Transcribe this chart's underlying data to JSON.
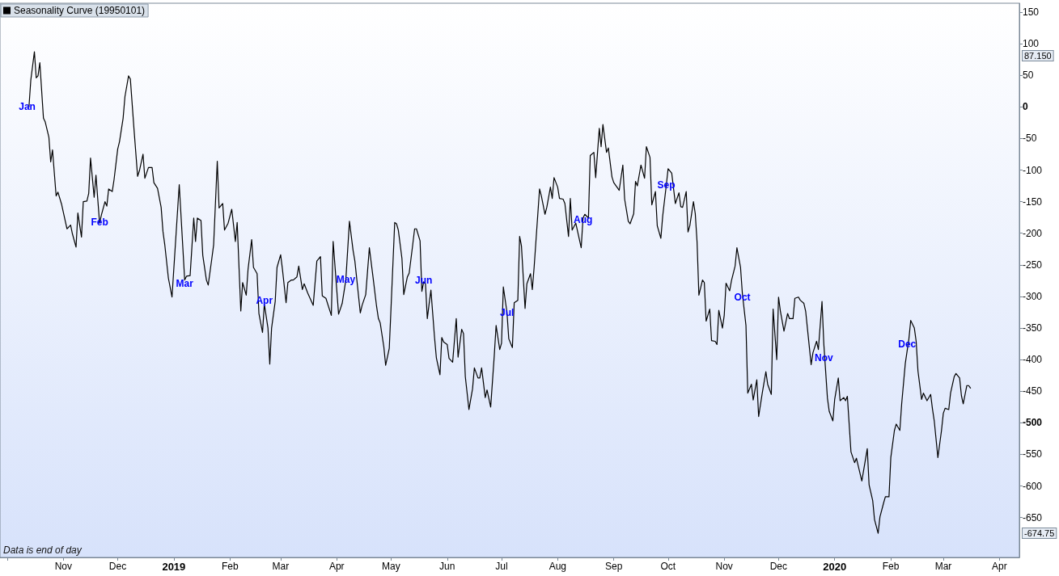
{
  "chart_data": {
    "type": "line",
    "x": [
      "2018-10-13",
      "2018-10-14",
      "2018-10-16",
      "2018-10-17",
      "2018-10-18",
      "2018-10-19",
      "2018-10-21",
      "2018-10-22",
      "2018-10-24",
      "2018-10-25",
      "2018-10-26",
      "2018-10-28",
      "2018-10-29",
      "2018-10-31",
      "2018-11-02",
      "2018-11-03",
      "2018-11-05",
      "2018-11-06",
      "2018-11-08",
      "2018-11-09",
      "2018-11-11",
      "2018-11-12",
      "2018-11-14",
      "2018-11-15",
      "2018-11-16",
      "2018-11-18",
      "2018-11-19",
      "2018-11-21",
      "2018-11-22",
      "2018-11-24",
      "2018-11-25",
      "2018-11-26",
      "2018-11-28",
      "2018-11-29",
      "2018-12-01",
      "2018-12-02",
      "2018-12-04",
      "2018-12-05",
      "2018-12-07",
      "2018-12-08",
      "2018-12-10",
      "2018-12-12",
      "2018-12-13",
      "2018-12-15",
      "2018-12-16",
      "2018-12-18",
      "2018-12-20",
      "2018-12-21",
      "2018-12-23",
      "2018-12-25",
      "2018-12-26",
      "2018-12-27",
      "2018-12-29",
      "2018-12-31",
      "2019-01-04",
      "2019-01-07",
      "2019-01-08",
      "2019-01-10",
      "2019-01-12",
      "2019-01-13",
      "2019-01-14",
      "2019-01-16",
      "2019-01-17",
      "2019-01-19",
      "2019-01-20",
      "2019-01-22",
      "2019-01-23",
      "2019-01-25",
      "2019-01-26",
      "2019-01-28",
      "2019-01-29",
      "2019-01-31",
      "2019-02-02",
      "2019-02-04",
      "2019-02-05",
      "2019-02-07",
      "2019-02-08",
      "2019-02-10",
      "2019-02-11",
      "2019-02-13",
      "2019-02-14",
      "2019-02-16",
      "2019-02-17",
      "2019-02-19",
      "2019-02-20",
      "2019-02-22",
      "2019-02-23",
      "2019-02-24",
      "2019-02-26",
      "2019-02-27",
      "2019-03-01",
      "2019-03-02",
      "2019-03-04",
      "2019-03-05",
      "2019-03-07",
      "2019-03-08",
      "2019-03-10",
      "2019-03-11",
      "2019-03-13",
      "2019-03-14",
      "2019-03-16",
      "2019-03-19",
      "2019-03-21",
      "2019-03-23",
      "2019-03-24",
      "2019-03-26",
      "2019-03-29",
      "2019-03-30",
      "2019-04-02",
      "2019-04-04",
      "2019-04-06",
      "2019-04-08",
      "2019-04-10",
      "2019-04-11",
      "2019-04-14",
      "2019-04-15",
      "2019-04-17",
      "2019-04-19",
      "2019-04-21",
      "2019-04-23",
      "2019-04-24",
      "2019-04-25",
      "2019-04-27",
      "2019-04-28",
      "2019-04-30",
      "2019-05-01",
      "2019-05-03",
      "2019-05-04",
      "2019-05-05",
      "2019-05-07",
      "2019-05-08",
      "2019-05-10",
      "2019-05-11",
      "2019-05-13",
      "2019-05-14",
      "2019-05-15",
      "2019-05-17",
      "2019-05-18",
      "2019-05-19",
      "2019-05-20",
      "2019-05-21",
      "2019-05-22",
      "2019-05-23",
      "2019-05-25",
      "2019-05-26",
      "2019-05-28",
      "2019-05-29",
      "2019-05-30",
      "2019-06-01",
      "2019-06-02",
      "2019-06-04",
      "2019-06-06",
      "2019-06-07",
      "2019-06-09",
      "2019-06-10",
      "2019-06-11",
      "2019-06-13",
      "2019-06-15",
      "2019-06-16",
      "2019-06-18",
      "2019-06-19",
      "2019-06-20",
      "2019-06-22",
      "2019-06-23",
      "2019-06-25",
      "2019-06-27",
      "2019-06-28",
      "2019-06-30",
      "2019-07-01",
      "2019-07-02",
      "2019-07-04",
      "2019-07-05",
      "2019-07-07",
      "2019-07-08",
      "2019-07-10",
      "2019-07-11",
      "2019-07-12",
      "2019-07-14",
      "2019-07-15",
      "2019-07-17",
      "2019-07-18",
      "2019-07-19",
      "2019-07-22",
      "2019-07-23",
      "2019-07-25",
      "2019-07-26",
      "2019-07-28",
      "2019-07-29",
      "2019-07-30",
      "2019-08-01",
      "2019-08-02",
      "2019-08-04",
      "2019-08-05",
      "2019-08-07",
      "2019-08-08",
      "2019-08-09",
      "2019-08-11",
      "2019-08-14",
      "2019-08-15",
      "2019-08-16",
      "2019-08-18",
      "2019-08-19",
      "2019-08-21",
      "2019-08-22",
      "2019-08-24",
      "2019-08-25",
      "2019-08-26",
      "2019-08-28",
      "2019-08-29",
      "2019-08-31",
      "2019-09-01",
      "2019-09-03",
      "2019-09-04",
      "2019-09-06",
      "2019-09-07",
      "2019-09-09",
      "2019-09-10",
      "2019-09-12",
      "2019-09-13",
      "2019-09-14",
      "2019-09-16",
      "2019-09-18",
      "2019-09-19",
      "2019-09-21",
      "2019-09-22",
      "2019-09-24",
      "2019-09-25",
      "2019-09-27",
      "2019-09-28",
      "2019-09-30",
      "2019-10-01",
      "2019-10-03",
      "2019-10-04",
      "2019-10-05",
      "2019-10-07",
      "2019-10-08",
      "2019-10-09",
      "2019-10-11",
      "2019-10-12",
      "2019-10-13",
      "2019-10-15",
      "2019-10-16",
      "2019-10-17",
      "2019-10-18",
      "2019-10-20",
      "2019-10-21",
      "2019-10-22",
      "2019-10-24",
      "2019-10-25",
      "2019-10-27",
      "2019-10-28",
      "2019-10-29",
      "2019-10-31",
      "2019-11-01",
      "2019-11-02",
      "2019-11-04",
      "2019-11-05",
      "2019-11-07",
      "2019-11-08",
      "2019-11-10",
      "2019-11-11",
      "2019-11-13",
      "2019-11-14",
      "2019-11-16",
      "2019-11-17",
      "2019-11-19",
      "2019-11-20",
      "2019-11-22",
      "2019-11-24",
      "2019-11-25",
      "2019-11-27",
      "2019-11-28",
      "2019-11-30",
      "2019-12-01",
      "2019-12-02",
      "2019-12-04",
      "2019-12-06",
      "2019-12-07",
      "2019-12-09",
      "2019-12-10",
      "2019-12-12",
      "2019-12-13",
      "2019-12-15",
      "2019-12-16",
      "2019-12-17",
      "2019-12-19",
      "2019-12-20",
      "2019-12-22",
      "2019-12-23",
      "2019-12-25",
      "2019-12-26",
      "2019-12-28",
      "2019-12-29",
      "2019-12-31",
      "2020-01-01",
      "2020-01-03",
      "2020-01-04",
      "2020-01-06",
      "2020-01-07",
      "2020-01-08",
      "2020-01-10",
      "2020-01-12",
      "2020-01-13",
      "2020-01-14",
      "2020-01-16",
      "2020-01-19",
      "2020-01-20",
      "2020-01-22",
      "2020-01-23",
      "2020-01-25",
      "2020-01-26",
      "2020-01-28",
      "2020-01-29",
      "2020-01-31",
      "2020-02-01",
      "2020-02-03",
      "2020-02-04",
      "2020-02-06",
      "2020-02-07",
      "2020-02-09",
      "2020-02-11",
      "2020-02-12",
      "2020-02-14",
      "2020-02-15",
      "2020-02-16",
      "2020-02-18",
      "2020-02-19",
      "2020-02-21",
      "2020-02-23",
      "2020-02-24",
      "2020-02-25",
      "2020-02-27",
      "2020-02-29",
      "2020-03-01",
      "2020-03-02",
      "2020-03-04",
      "2020-03-05",
      "2020-03-07",
      "2020-03-08",
      "2020-03-10",
      "2020-03-11",
      "2020-03-12",
      "2020-03-14",
      "2020-03-15",
      "2020-03-16"
    ],
    "series": [
      {
        "name": "Seasonality Curve (19950101)",
        "color": "#000000",
        "values": [
          0,
          42,
          87.15,
          46,
          49,
          70,
          -18,
          -24,
          -48,
          -87,
          -68,
          -141,
          -135,
          -154,
          -180,
          -193,
          -187,
          -201,
          -222,
          -168,
          -206,
          -150,
          -149,
          -137,
          -81,
          -143,
          -108,
          -184,
          -171,
          -150,
          -157,
          -130,
          -134,
          -115,
          -67,
          -55,
          -18,
          16,
          49,
          44,
          -35,
          -110,
          -101,
          -75,
          -113,
          -96,
          -96,
          -120,
          -129,
          -159,
          -197,
          -218,
          -271,
          -301,
          -123,
          -274,
          -268,
          -267,
          -176,
          -213,
          -176,
          -180,
          -235,
          -274,
          -282,
          -240,
          -218,
          -86,
          -160,
          -153,
          -195,
          -184,
          -162,
          -213,
          -183,
          -323,
          -278,
          -298,
          -257,
          -210,
          -254,
          -264,
          -327,
          -357,
          -312,
          -350,
          -407,
          -350,
          -308,
          -254,
          -234,
          -257,
          -310,
          -278,
          -274,
          -274,
          -269,
          -252,
          -289,
          -280,
          -295,
          -314,
          -244,
          -237,
          -299,
          -303,
          -330,
          -213,
          -328,
          -311,
          -274,
          -181,
          -227,
          -244,
          -326,
          -314,
          -297,
          -223,
          -269,
          -316,
          -335,
          -342,
          -380,
          -409,
          -382,
          -316,
          -183,
          -185,
          -195,
          -240,
          -297,
          -269,
          -263,
          -217,
          -193,
          -193,
          -212,
          -292,
          -277,
          -280,
          -335,
          -312,
          -290,
          -365,
          -397,
          -424,
          -365,
          -372,
          -376,
          -398,
          -404,
          -335,
          -396,
          -352,
          -359,
          -427,
          -479,
          -446,
          -413,
          -429,
          -429,
          -413,
          -460,
          -448,
          -475,
          -393,
          -346,
          -384,
          -374,
          -285,
          -325,
          -367,
          -381,
          -310,
          -306,
          -205,
          -220,
          -319,
          -280,
          -264,
          -289,
          -254,
          -130,
          -141,
          -170,
          -159,
          -127,
          -145,
          -112,
          -127,
          -145,
          -146,
          -153,
          -205,
          -145,
          -195,
          -184,
          -223,
          -176,
          -170,
          -176,
          -77,
          -72,
          -112,
          -34,
          -63,
          -28,
          -72,
          -65,
          -111,
          -120,
          -128,
          -132,
          -92,
          -146,
          -181,
          -185,
          -169,
          -118,
          -125,
          -92,
          -113,
          -63,
          -80,
          -155,
          -134,
          -188,
          -208,
          -173,
          -124,
          -98,
          -105,
          -129,
          -153,
          -136,
          -158,
          -159,
          -134,
          -198,
          -188,
          -150,
          -169,
          -214,
          -298,
          -274,
          -278,
          -339,
          -320,
          -370,
          -371,
          -376,
          -322,
          -350,
          -330,
          -279,
          -291,
          -275,
          -252,
          -223,
          -254,
          -295,
          -346,
          -453,
          -439,
          -464,
          -432,
          -490,
          -453,
          -419,
          -439,
          -455,
          -320,
          -400,
          -301,
          -323,
          -355,
          -327,
          -335,
          -335,
          -303,
          -301,
          -306,
          -311,
          -324,
          -352,
          -408,
          -389,
          -371,
          -384,
          -308,
          -375,
          -461,
          -482,
          -497,
          -463,
          -429,
          -465,
          -460,
          -465,
          -458,
          -546,
          -563,
          -556,
          -568,
          -592,
          -541,
          -598,
          -623,
          -653,
          -674.75,
          -649,
          -627,
          -617,
          -617,
          -555,
          -512,
          -502,
          -512,
          -470,
          -406,
          -367,
          -338,
          -350,
          -371,
          -418,
          -463,
          -453,
          -465,
          -455,
          -478,
          -497,
          -555,
          -512,
          -485,
          -477,
          -479,
          -453,
          -427,
          -422,
          -429,
          -457,
          -470,
          -441,
          -441,
          -445
        ]
      }
    ],
    "xlim": [
      "2018-09-27",
      "2020-04-12"
    ],
    "xticks": [
      {
        "value": "2018-10-01",
        "label": null
      },
      {
        "value": "2018-11-01",
        "label": "Nov"
      },
      {
        "value": "2018-12-01",
        "label": "Dec"
      },
      {
        "value": "2019-01-01",
        "label": "2019"
      },
      {
        "value": "2019-02-01",
        "label": "Feb"
      },
      {
        "value": "2019-03-01",
        "label": "Mar"
      },
      {
        "value": "2019-04-01",
        "label": "Apr"
      },
      {
        "value": "2019-05-01",
        "label": "May"
      },
      {
        "value": "2019-06-01",
        "label": "Jun"
      },
      {
        "value": "2019-07-01",
        "label": "Jul"
      },
      {
        "value": "2019-08-01",
        "label": "Aug"
      },
      {
        "value": "2019-09-01",
        "label": "Sep"
      },
      {
        "value": "2019-10-01",
        "label": "Oct"
      },
      {
        "value": "2019-11-01",
        "label": "Nov"
      },
      {
        "value": "2019-12-01",
        "label": "Dec"
      },
      {
        "value": "2020-01-01",
        "label": "2020"
      },
      {
        "value": "2020-02-01",
        "label": "Feb"
      },
      {
        "value": "2020-03-01",
        "label": "Mar"
      },
      {
        "value": "2020-04-01",
        "label": "Apr"
      }
    ],
    "ylim": [
      -713,
      164
    ],
    "yticks": [
      {
        "value": -674.75,
        "label": "-674.75"
      },
      -650,
      -600,
      -550,
      -500,
      -450,
      -400,
      -350,
      -300,
      -250,
      -200,
      -150,
      -100,
      -50,
      0,
      50,
      {
        "value": 87.15,
        "label": "87.150"
      },
      100,
      150
    ],
    "legend": "top left",
    "annotations": [
      {
        "text": "Jan",
        "x": "2018-10-12",
        "y": 0
      },
      {
        "text": "Feb",
        "x": "2018-11-21",
        "y": -183
      },
      {
        "text": "Mar",
        "x": "2019-01-07",
        "y": -279
      },
      {
        "text": "Apr",
        "x": "2019-02-20",
        "y": -306
      },
      {
        "text": "May",
        "x": "2019-04-06",
        "y": -273
      },
      {
        "text": "Jun",
        "x": "2019-05-19",
        "y": -275
      },
      {
        "text": "Jul",
        "x": "2019-07-04",
        "y": -326
      },
      {
        "text": "Aug",
        "x": "2019-08-15",
        "y": -179
      },
      {
        "text": "Sep",
        "x": "2019-09-30",
        "y": -124
      },
      {
        "text": "Oct",
        "x": "2019-11-11",
        "y": -301
      },
      {
        "text": "Nov",
        "x": "2019-12-26",
        "y": -397
      },
      {
        "text": "Dec",
        "x": "2020-02-10",
        "y": -375
      },
      "Data is end of day"
    ]
  }
}
